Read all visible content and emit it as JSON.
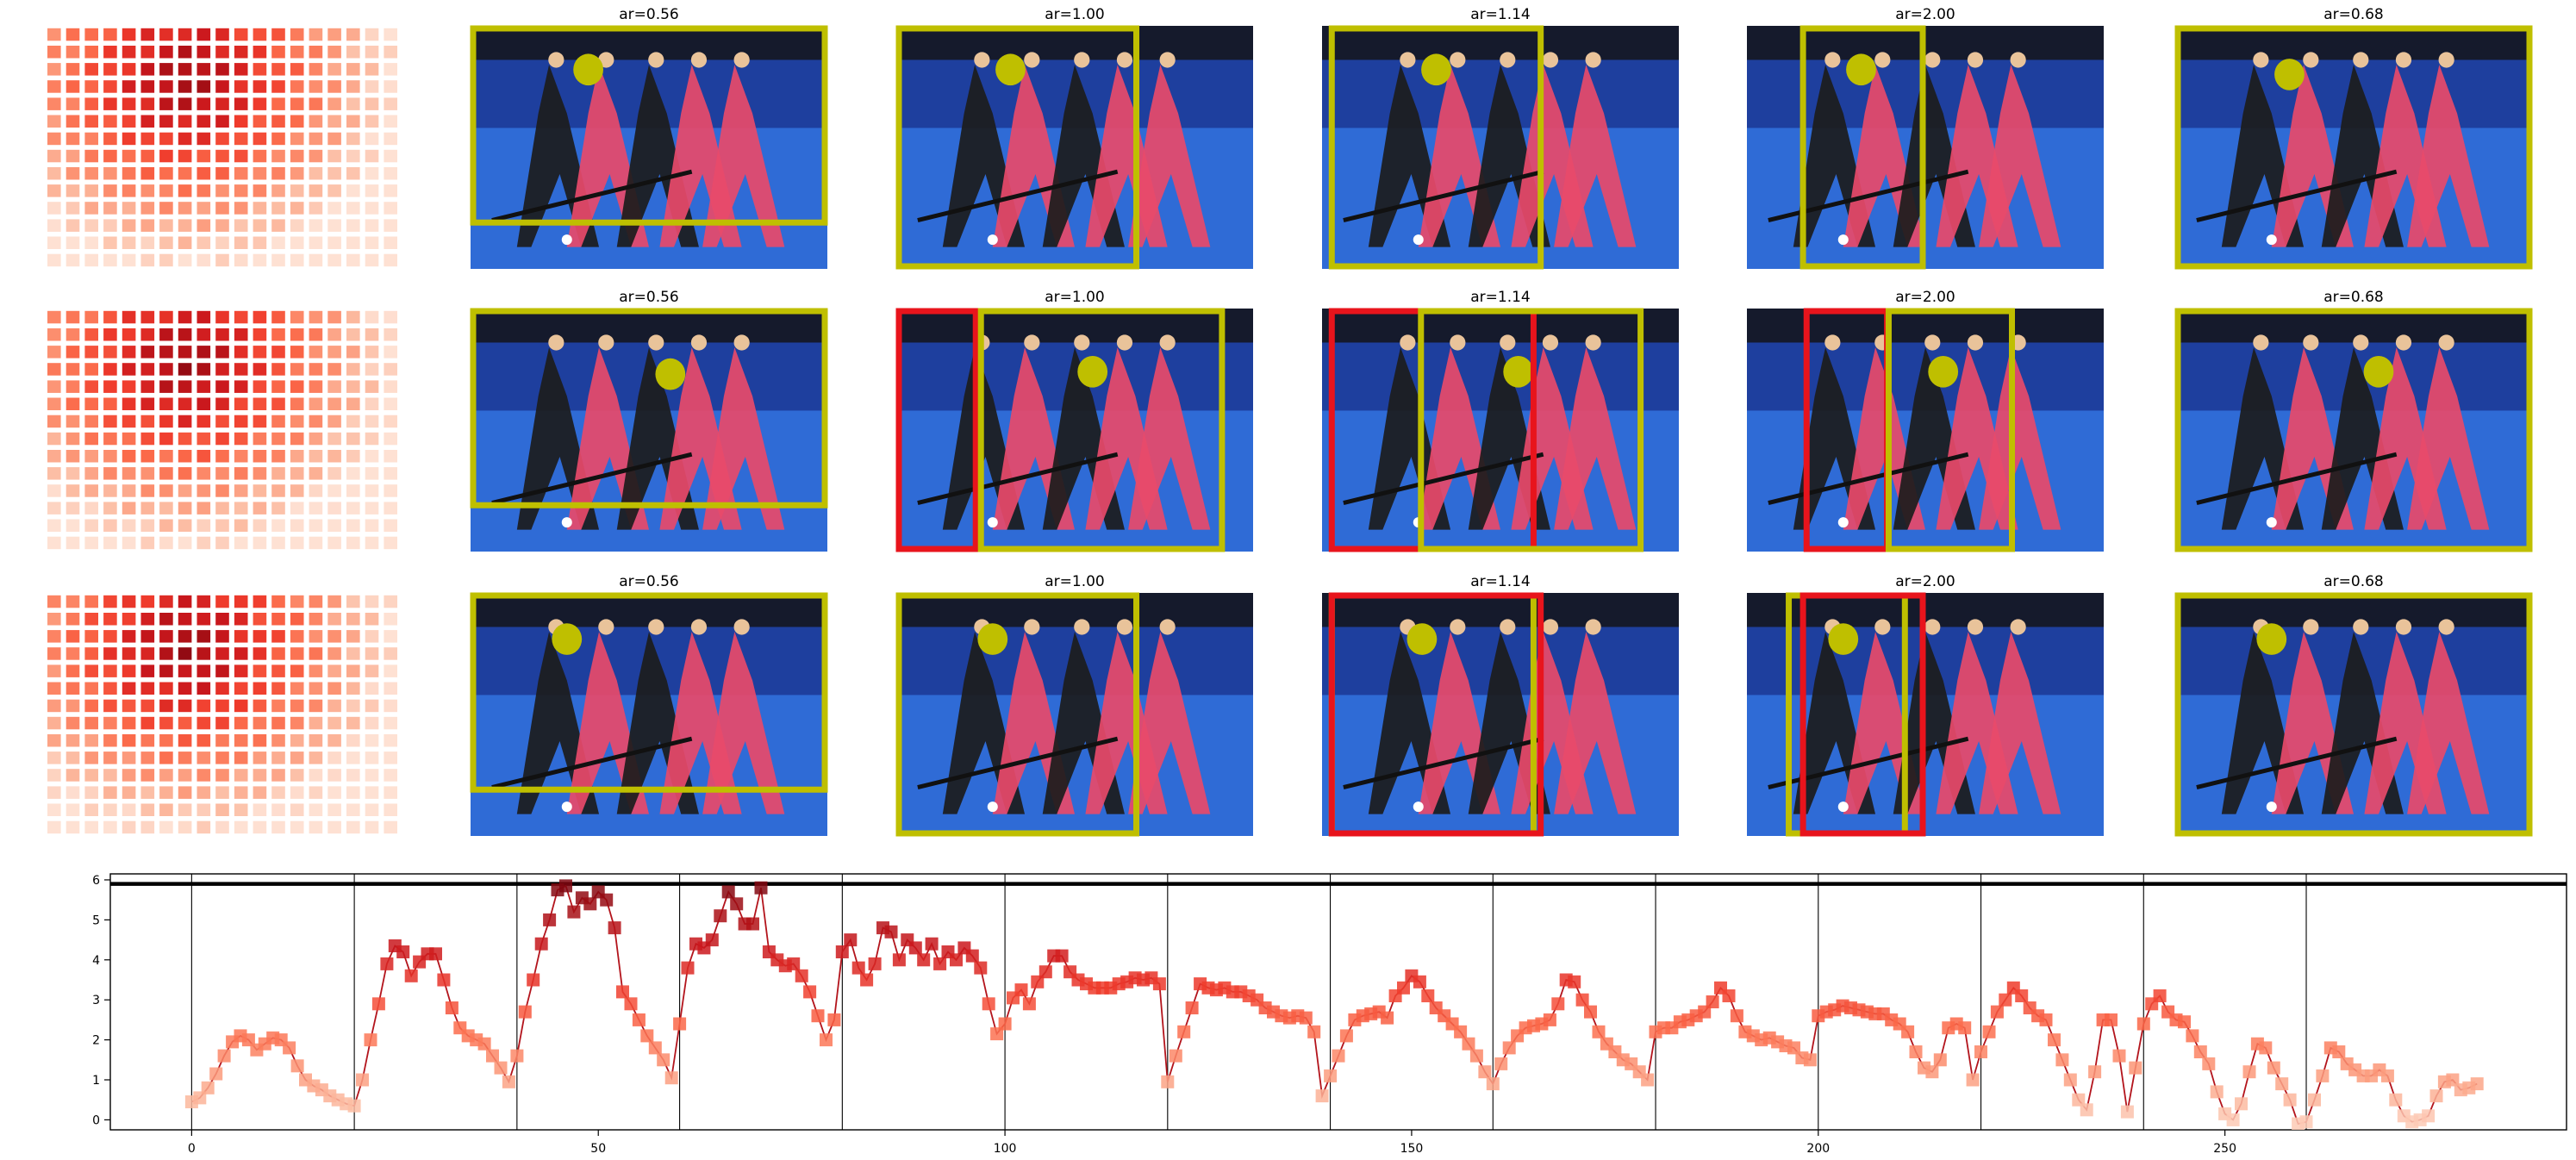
{
  "figure": {
    "rows": [
      {
        "panels": [
          {
            "title": "ar=0.56",
            "dot": "yes",
            "boxes": [
              "yellow"
            ]
          },
          {
            "title": "ar=1.00",
            "dot": "yes",
            "boxes": [
              "yellow"
            ]
          },
          {
            "title": "ar=1.14",
            "dot": "yes",
            "boxes": [
              "yellow"
            ]
          },
          {
            "title": "ar=2.00",
            "dot": "yes",
            "boxes": [
              "yellow"
            ]
          },
          {
            "title": "ar=0.68",
            "dot": "yes",
            "boxes": [
              "yellow"
            ]
          }
        ]
      },
      {
        "panels": [
          {
            "title": "ar=0.56",
            "dot": "yes",
            "boxes": [
              "yellow"
            ]
          },
          {
            "title": "ar=1.00",
            "dot": "yes",
            "boxes": [
              "red",
              "yellow"
            ]
          },
          {
            "title": "ar=1.14",
            "dot": "yes",
            "boxes": [
              "red",
              "yellow"
            ]
          },
          {
            "title": "ar=2.00",
            "dot": "yes",
            "boxes": [
              "red",
              "yellow"
            ]
          },
          {
            "title": "ar=0.68",
            "dot": "yes",
            "boxes": [
              "yellow"
            ]
          }
        ]
      },
      {
        "panels": [
          {
            "title": "ar=0.56",
            "dot": "yes",
            "boxes": [
              "yellow"
            ]
          },
          {
            "title": "ar=1.00",
            "dot": "yes",
            "boxes": [
              "yellow"
            ]
          },
          {
            "title": "ar=1.14",
            "dot": "yes",
            "boxes": [
              "yellow",
              "red"
            ]
          },
          {
            "title": "ar=2.00",
            "dot": "yes",
            "boxes": [
              "yellow",
              "red"
            ]
          },
          {
            "title": "ar=0.68",
            "dot": "yes",
            "boxes": [
              "yellow"
            ]
          }
        ]
      }
    ],
    "colors": {
      "yellow_box": "#bfbf00",
      "red_box": "#e8141c",
      "field": "#2f6bd6",
      "jersey": "#e84a6a",
      "dark_kit": "#1c1c1c",
      "backdrop": "#1e3f9e"
    }
  },
  "chart_data": {
    "type": "line",
    "title": "",
    "xlabel": "",
    "ylabel": "",
    "xlim": [
      -10,
      292
    ],
    "ylim": [
      -0.25,
      6.15
    ],
    "xticks": [
      "0",
      "50",
      "100",
      "150",
      "200",
      "250"
    ],
    "yticks": [
      "0",
      "1",
      "2",
      "3",
      "4",
      "5",
      "6"
    ],
    "segment_boundaries": [
      0,
      20,
      40,
      60,
      80,
      100,
      120,
      140,
      160,
      180,
      200,
      220,
      240,
      260
    ],
    "max_line_y": 5.9,
    "marker": "square",
    "colormap": "Reds",
    "series": [
      {
        "values": [
          0.45,
          0.55,
          0.8,
          1.15,
          1.6,
          1.95,
          2.1,
          2.0,
          1.75,
          1.9,
          2.05,
          2.0,
          1.8,
          1.35,
          1.0,
          0.85,
          0.75,
          0.6,
          0.5,
          0.4,
          0.35,
          1.0,
          2.0,
          2.9,
          3.9,
          4.35,
          4.2,
          3.6,
          3.95,
          4.15,
          4.15,
          3.5,
          2.8,
          2.3,
          2.1,
          2.0,
          1.9,
          1.6,
          1.3,
          0.95,
          1.6,
          2.7,
          3.5,
          4.4,
          5.0,
          5.75,
          5.85,
          5.2,
          5.55,
          5.4,
          5.7,
          5.5,
          4.8,
          3.2,
          2.9,
          2.5,
          2.1,
          1.8,
          1.5,
          1.05,
          2.4,
          3.8,
          4.4,
          4.3,
          4.5,
          5.1,
          5.7,
          5.4,
          4.9,
          4.9,
          5.8,
          4.2,
          4.0,
          3.85,
          3.9,
          3.6,
          3.2,
          2.6,
          2.0,
          2.5,
          4.2,
          4.5,
          3.8,
          3.5,
          3.9,
          4.8,
          4.7,
          4.0,
          4.5,
          4.3,
          4.0,
          4.4,
          3.9,
          4.2,
          4.0,
          4.3,
          4.1,
          3.8,
          2.9,
          2.15,
          2.4,
          3.05,
          3.25,
          2.9,
          3.45,
          3.7,
          4.1,
          4.1,
          3.7,
          3.5,
          3.4,
          3.3,
          3.3,
          3.3,
          3.4,
          3.45,
          3.55,
          3.5,
          3.55,
          3.4,
          0.95,
          1.6,
          2.2,
          2.8,
          3.4,
          3.3,
          3.25,
          3.3,
          3.2,
          3.2,
          3.1,
          3.0,
          2.8,
          2.7,
          2.6,
          2.55,
          2.6,
          2.55,
          2.2,
          0.6,
          1.1,
          1.6,
          2.1,
          2.5,
          2.6,
          2.65,
          2.7,
          2.55,
          3.1,
          3.3,
          3.6,
          3.45,
          3.1,
          2.8,
          2.6,
          2.4,
          2.2,
          1.9,
          1.6,
          1.2,
          0.9,
          1.4,
          1.8,
          2.1,
          2.3,
          2.35,
          2.4,
          2.5,
          2.9,
          3.5,
          3.45,
          3.0,
          2.7,
          2.2,
          1.9,
          1.7,
          1.5,
          1.4,
          1.2,
          1.0,
          2.2,
          2.3,
          2.3,
          2.45,
          2.5,
          2.6,
          2.7,
          2.95,
          3.3,
          3.1,
          2.6,
          2.2,
          2.1,
          2.0,
          2.05,
          1.95,
          1.85,
          1.8,
          1.55,
          1.5,
          2.6,
          2.7,
          2.75,
          2.85,
          2.8,
          2.75,
          2.7,
          2.65,
          2.65,
          2.5,
          2.4,
          2.2,
          1.7,
          1.3,
          1.2,
          1.5,
          2.3,
          2.4,
          2.3,
          1.0,
          1.7,
          2.2,
          2.7,
          3.0,
          3.3,
          3.1,
          2.8,
          2.6,
          2.5,
          2.0,
          1.5,
          1.0,
          0.5,
          0.25,
          1.2,
          2.5,
          2.5,
          1.6,
          0.2,
          1.3,
          2.4,
          2.9,
          3.1,
          2.7,
          2.5,
          2.45,
          2.1,
          1.7,
          1.4,
          0.7,
          0.15,
          0.0,
          0.4,
          1.2,
          1.9,
          1.8,
          1.3,
          0.9,
          0.5,
          -0.1,
          -0.05,
          0.5,
          1.1,
          1.8,
          1.7,
          1.4,
          1.25,
          1.1,
          1.1,
          1.25,
          1.1,
          0.5,
          0.1,
          -0.05,
          0.0,
          0.1,
          0.6,
          0.95,
          1.0,
          0.75,
          0.8,
          0.9
        ]
      }
    ]
  }
}
